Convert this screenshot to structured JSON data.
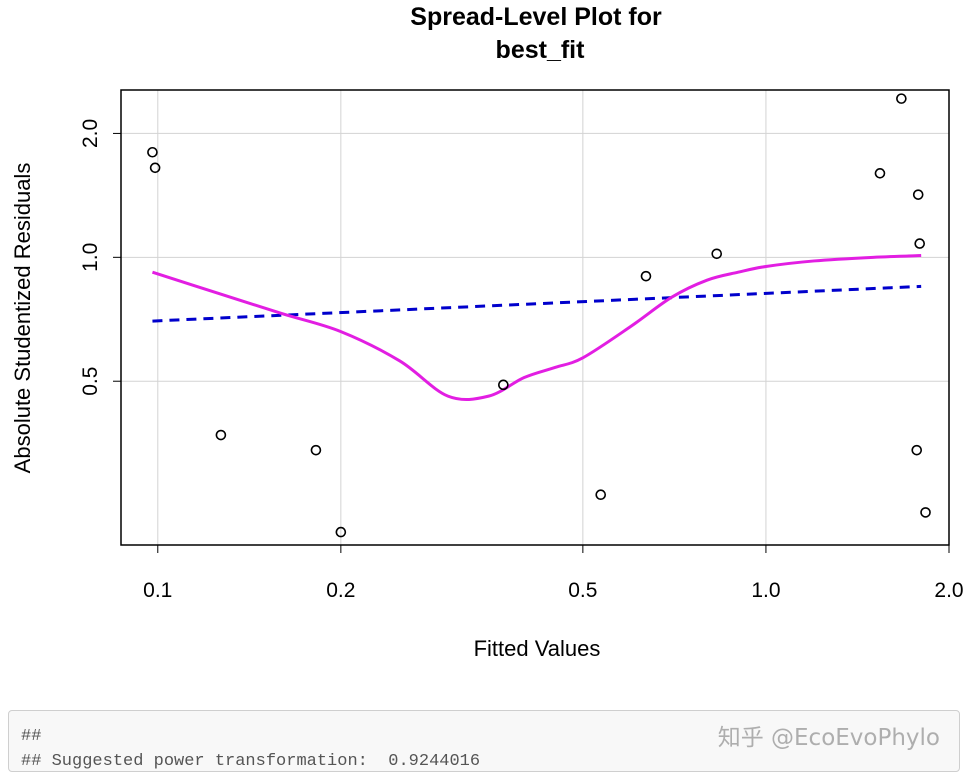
{
  "chart_data": {
    "type": "scatter",
    "title_line1": "Spread-Level Plot for",
    "title_line2": "best_fit",
    "xlabel": "Fitted Values",
    "ylabel": "Absolute Studentized Residuals",
    "x_scale": "log",
    "y_scale": "log",
    "xlim": [
      0.087,
      2.0
    ],
    "ylim": [
      0.2,
      2.55
    ],
    "x_ticks": [
      {
        "value": 0.1,
        "label": "0.1"
      },
      {
        "value": 0.2,
        "label": "0.2"
      },
      {
        "value": 0.5,
        "label": "0.5"
      },
      {
        "value": 1.0,
        "label": "1.0"
      },
      {
        "value": 2.0,
        "label": "2.0"
      }
    ],
    "y_ticks": [
      {
        "value": 0.5,
        "label": "0.5"
      },
      {
        "value": 1.0,
        "label": "1.0"
      },
      {
        "value": 2.0,
        "label": "2.0"
      }
    ],
    "grid": true,
    "points": [
      {
        "x": 0.098,
        "y": 1.8
      },
      {
        "x": 0.099,
        "y": 1.65
      },
      {
        "x": 0.127,
        "y": 0.37
      },
      {
        "x": 0.182,
        "y": 0.34
      },
      {
        "x": 0.2,
        "y": 0.215
      },
      {
        "x": 0.37,
        "y": 0.49
      },
      {
        "x": 0.535,
        "y": 0.265
      },
      {
        "x": 0.635,
        "y": 0.9
      },
      {
        "x": 0.83,
        "y": 1.02
      },
      {
        "x": 1.54,
        "y": 1.6
      },
      {
        "x": 1.67,
        "y": 2.43
      },
      {
        "x": 1.77,
        "y": 0.34
      },
      {
        "x": 1.78,
        "y": 1.42
      },
      {
        "x": 1.79,
        "y": 1.08
      },
      {
        "x": 1.83,
        "y": 0.24
      }
    ],
    "lines": [
      {
        "style": "dashed",
        "color": "#0000cc",
        "x": [
          0.098,
          1.8
        ],
        "y": [
          0.7,
          0.85
        ]
      },
      {
        "style": "solid",
        "color": "#e21ee2",
        "x": [
          0.098,
          0.125,
          0.16,
          0.2,
          0.25,
          0.3,
          0.35,
          0.4,
          0.45,
          0.5,
          0.6,
          0.7,
          0.8,
          0.9,
          1.0,
          1.2,
          1.5,
          1.8
        ],
        "y": [
          0.92,
          0.82,
          0.73,
          0.66,
          0.56,
          0.46,
          0.46,
          0.51,
          0.54,
          0.57,
          0.68,
          0.8,
          0.88,
          0.92,
          0.95,
          0.98,
          1.0,
          1.01
        ]
      }
    ]
  },
  "console": {
    "line1": "##",
    "line2": "## Suggested power transformation:  0.9244016"
  },
  "watermark": "知乎 @EcoEvoPhylo"
}
